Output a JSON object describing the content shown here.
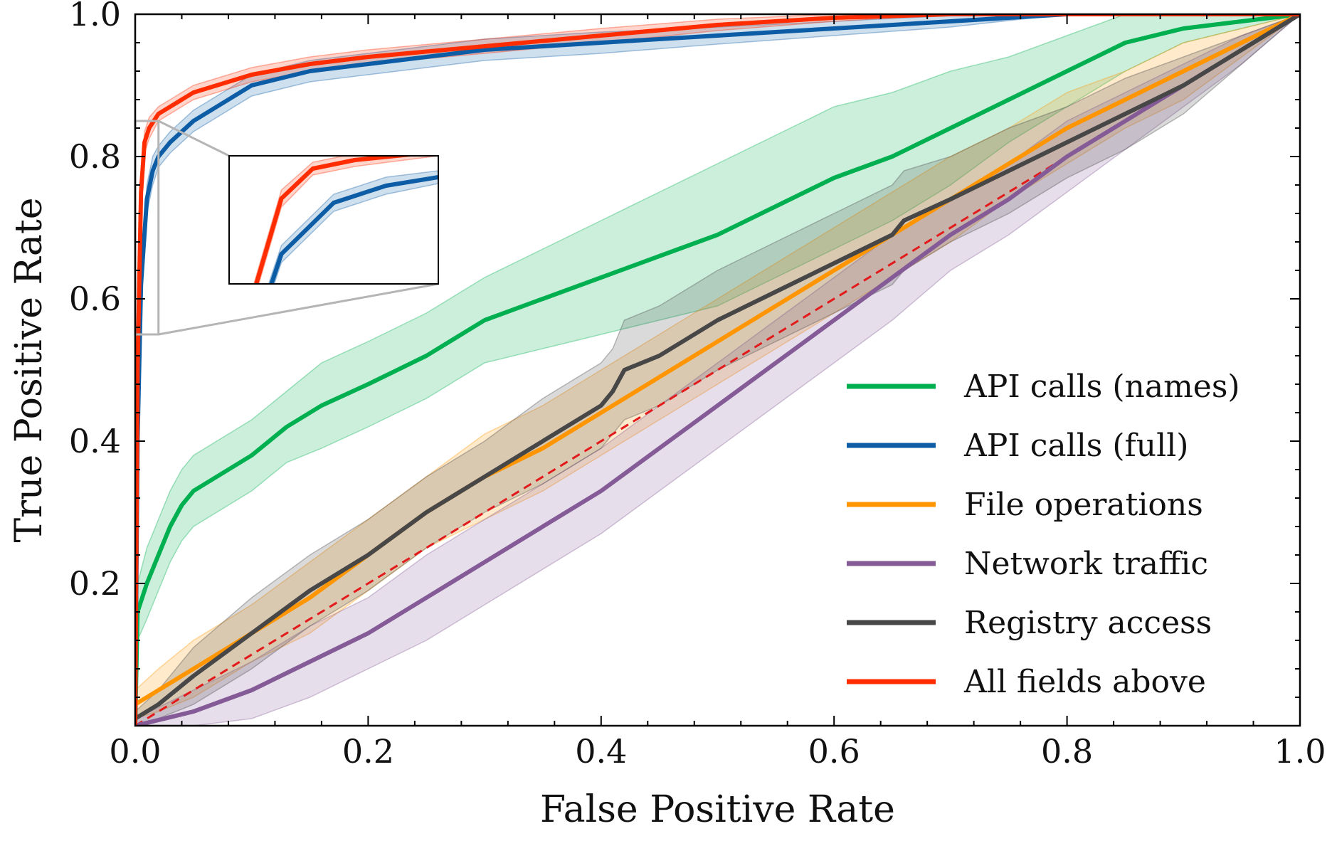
{
  "chart_data": {
    "type": "line",
    "title": "",
    "xlabel": "False Positive Rate",
    "ylabel": "True Positive Rate",
    "xlim": [
      0,
      1
    ],
    "ylim": [
      0,
      1
    ],
    "xticks": [
      "0.0",
      "0.2",
      "0.4",
      "0.6",
      "0.8",
      "1.0"
    ],
    "yticks": [
      "0.2",
      "0.4",
      "0.6",
      "0.8",
      "1.0"
    ],
    "grid": false,
    "legend_position": "bottom-right",
    "diagonal": {
      "style": "dashed",
      "color": "#e31a1c",
      "points": [
        [
          0,
          0
        ],
        [
          1,
          1
        ]
      ]
    },
    "series": [
      {
        "name": "API calls (names)",
        "color": "#00b050",
        "points": [
          [
            0,
            0
          ],
          [
            0.002,
            0.16
          ],
          [
            0.01,
            0.2
          ],
          [
            0.02,
            0.24
          ],
          [
            0.03,
            0.28
          ],
          [
            0.04,
            0.31
          ],
          [
            0.05,
            0.33
          ],
          [
            0.07,
            0.35
          ],
          [
            0.1,
            0.38
          ],
          [
            0.13,
            0.42
          ],
          [
            0.16,
            0.45
          ],
          [
            0.2,
            0.48
          ],
          [
            0.25,
            0.52
          ],
          [
            0.3,
            0.57
          ],
          [
            0.35,
            0.6
          ],
          [
            0.4,
            0.63
          ],
          [
            0.45,
            0.66
          ],
          [
            0.5,
            0.69
          ],
          [
            0.55,
            0.73
          ],
          [
            0.6,
            0.77
          ],
          [
            0.65,
            0.8
          ],
          [
            0.7,
            0.84
          ],
          [
            0.75,
            0.88
          ],
          [
            0.8,
            0.92
          ],
          [
            0.85,
            0.96
          ],
          [
            0.9,
            0.98
          ],
          [
            0.95,
            0.99
          ],
          [
            1,
            1
          ]
        ],
        "band": [
          0.03,
          0.04,
          0.05,
          0.05,
          0.05,
          0.05,
          0.05,
          0.05,
          0.05,
          0.05,
          0.06,
          0.06,
          0.06,
          0.06,
          0.07,
          0.08,
          0.09,
          0.1,
          0.1,
          0.1,
          0.09,
          0.08,
          0.06,
          0.05,
          0.04,
          0.02,
          0.01,
          0
        ]
      },
      {
        "name": "API calls (full)",
        "color": "#0c5da5",
        "points": [
          [
            0,
            0
          ],
          [
            0.002,
            0.4
          ],
          [
            0.005,
            0.62
          ],
          [
            0.01,
            0.74
          ],
          [
            0.015,
            0.78
          ],
          [
            0.02,
            0.8
          ],
          [
            0.03,
            0.82
          ],
          [
            0.05,
            0.85
          ],
          [
            0.08,
            0.88
          ],
          [
            0.1,
            0.9
          ],
          [
            0.15,
            0.92
          ],
          [
            0.2,
            0.93
          ],
          [
            0.3,
            0.95
          ],
          [
            0.4,
            0.96
          ],
          [
            0.5,
            0.97
          ],
          [
            0.6,
            0.98
          ],
          [
            0.7,
            0.99
          ],
          [
            0.8,
            1
          ],
          [
            1,
            1
          ]
        ],
        "band": [
          0,
          0.02,
          0.02,
          0.02,
          0.02,
          0.015,
          0.015,
          0.015,
          0.015,
          0.015,
          0.015,
          0.015,
          0.015,
          0.015,
          0.012,
          0.01,
          0.008,
          0,
          0
        ]
      },
      {
        "name": "File operations",
        "color": "#ff9500",
        "points": [
          [
            0,
            0.03
          ],
          [
            0.02,
            0.05
          ],
          [
            0.05,
            0.08
          ],
          [
            0.1,
            0.13
          ],
          [
            0.15,
            0.18
          ],
          [
            0.2,
            0.24
          ],
          [
            0.25,
            0.3
          ],
          [
            0.3,
            0.35
          ],
          [
            0.35,
            0.39
          ],
          [
            0.4,
            0.44
          ],
          [
            0.45,
            0.49
          ],
          [
            0.5,
            0.54
          ],
          [
            0.55,
            0.59
          ],
          [
            0.6,
            0.64
          ],
          [
            0.65,
            0.69
          ],
          [
            0.7,
            0.74
          ],
          [
            0.75,
            0.79
          ],
          [
            0.8,
            0.84
          ],
          [
            0.85,
            0.88
          ],
          [
            0.9,
            0.92
          ],
          [
            0.95,
            0.96
          ],
          [
            1,
            1
          ]
        ],
        "band": [
          0.02,
          0.03,
          0.04,
          0.04,
          0.05,
          0.05,
          0.05,
          0.06,
          0.06,
          0.06,
          0.06,
          0.06,
          0.06,
          0.06,
          0.06,
          0.06,
          0.05,
          0.05,
          0.04,
          0.04,
          0.02,
          0
        ]
      },
      {
        "name": "Network traffic",
        "color": "#845b97",
        "points": [
          [
            0,
            0
          ],
          [
            0.05,
            0.02
          ],
          [
            0.1,
            0.05
          ],
          [
            0.15,
            0.09
          ],
          [
            0.2,
            0.13
          ],
          [
            0.25,
            0.18
          ],
          [
            0.3,
            0.23
          ],
          [
            0.35,
            0.28
          ],
          [
            0.4,
            0.33
          ],
          [
            0.45,
            0.39
          ],
          [
            0.5,
            0.45
          ],
          [
            0.55,
            0.51
          ],
          [
            0.6,
            0.57
          ],
          [
            0.65,
            0.63
          ],
          [
            0.7,
            0.69
          ],
          [
            0.75,
            0.74
          ],
          [
            0.8,
            0.8
          ],
          [
            0.85,
            0.85
          ],
          [
            0.9,
            0.9
          ],
          [
            0.95,
            0.95
          ],
          [
            1,
            1
          ]
        ],
        "band": [
          0.01,
          0.03,
          0.04,
          0.05,
          0.05,
          0.06,
          0.06,
          0.06,
          0.06,
          0.06,
          0.06,
          0.06,
          0.06,
          0.06,
          0.05,
          0.05,
          0.05,
          0.04,
          0.03,
          0.02,
          0
        ]
      },
      {
        "name": "Registry access",
        "color": "#474747",
        "points": [
          [
            0,
            0.01
          ],
          [
            0.02,
            0.03
          ],
          [
            0.05,
            0.07
          ],
          [
            0.1,
            0.13
          ],
          [
            0.15,
            0.19
          ],
          [
            0.2,
            0.24
          ],
          [
            0.25,
            0.3
          ],
          [
            0.3,
            0.35
          ],
          [
            0.35,
            0.4
          ],
          [
            0.4,
            0.45
          ],
          [
            0.41,
            0.47
          ],
          [
            0.42,
            0.5
          ],
          [
            0.45,
            0.52
          ],
          [
            0.5,
            0.57
          ],
          [
            0.55,
            0.61
          ],
          [
            0.6,
            0.65
          ],
          [
            0.65,
            0.69
          ],
          [
            0.66,
            0.71
          ],
          [
            0.7,
            0.74
          ],
          [
            0.75,
            0.78
          ],
          [
            0.8,
            0.82
          ],
          [
            0.85,
            0.86
          ],
          [
            0.9,
            0.9
          ],
          [
            0.95,
            0.95
          ],
          [
            1,
            1
          ]
        ],
        "band": [
          0.01,
          0.02,
          0.04,
          0.05,
          0.05,
          0.05,
          0.05,
          0.05,
          0.06,
          0.06,
          0.06,
          0.07,
          0.07,
          0.07,
          0.07,
          0.07,
          0.07,
          0.07,
          0.06,
          0.06,
          0.05,
          0.05,
          0.04,
          0.02,
          0
        ]
      },
      {
        "name": "All fields above",
        "color": "#ff2c00",
        "points": [
          [
            0,
            0
          ],
          [
            0.002,
            0.5
          ],
          [
            0.005,
            0.75
          ],
          [
            0.008,
            0.82
          ],
          [
            0.012,
            0.84
          ],
          [
            0.02,
            0.86
          ],
          [
            0.03,
            0.87
          ],
          [
            0.05,
            0.89
          ],
          [
            0.08,
            0.905
          ],
          [
            0.1,
            0.915
          ],
          [
            0.15,
            0.93
          ],
          [
            0.2,
            0.94
          ],
          [
            0.3,
            0.955
          ],
          [
            0.4,
            0.97
          ],
          [
            0.5,
            0.985
          ],
          [
            0.6,
            0.995
          ],
          [
            0.7,
            1
          ],
          [
            1,
            1
          ]
        ],
        "band": [
          0,
          0.02,
          0.02,
          0.015,
          0.015,
          0.01,
          0.01,
          0.01,
          0.01,
          0.01,
          0.01,
          0.01,
          0.01,
          0.01,
          0.008,
          0.005,
          0,
          0
        ]
      }
    ],
    "inset": {
      "xlim": [
        0,
        0.02
      ],
      "ylim": [
        0.55,
        0.85
      ]
    }
  }
}
